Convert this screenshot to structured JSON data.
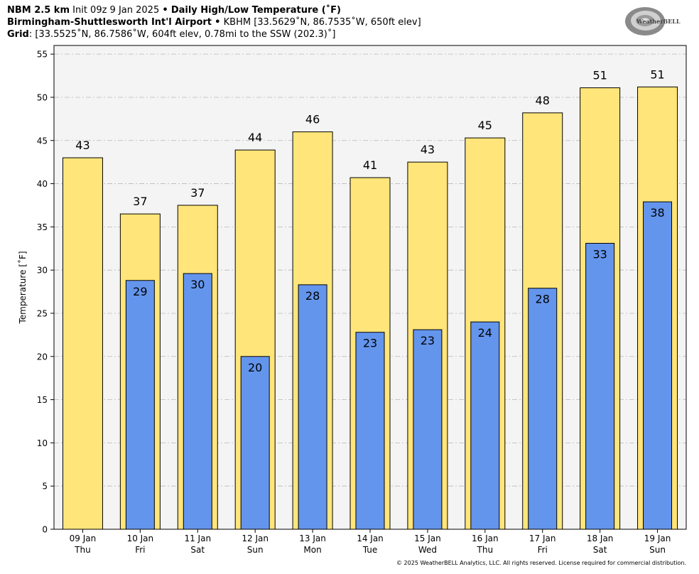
{
  "header": {
    "line1_bold": "NBM 2.5 km",
    "line1_init": "Init 09z 9 Jan 2025",
    "line1_sep": "•",
    "line1_title": "Daily High/Low Temperature (˚F)",
    "line2_bold": "Birmingham-Shuttlesworth Int'l Airport",
    "line2_sep": "•",
    "line2_rest": "KBHM [33.5629˚N, 86.7535˚W, 650ft elev]",
    "line3_bold": "Grid",
    "line3_rest": ": [33.5525˚N, 86.7586˚W, 604ft elev, 0.78mi to the SSW (202.3)˚]"
  },
  "logo": {
    "text": "WeatherBELL",
    "icon": "weatherbell-swirl-logo"
  },
  "footer": "© 2025 WeatherBELL Analytics, LLC. All rights reserved. License required for commercial distribution.",
  "colors": {
    "high": "#FFE57A",
    "low": "#6495ED",
    "plot_bg": "#F4F4F4"
  },
  "chart_data": {
    "type": "bar",
    "ylabel": "Temperature [˚F]",
    "ylim": [
      0,
      56
    ],
    "yticks": [
      0,
      5,
      10,
      15,
      20,
      25,
      30,
      35,
      40,
      45,
      50,
      55
    ],
    "grid": true,
    "categories": [
      "09 Jan",
      "10 Jan",
      "11 Jan",
      "12 Jan",
      "13 Jan",
      "14 Jan",
      "15 Jan",
      "16 Jan",
      "17 Jan",
      "18 Jan",
      "19 Jan"
    ],
    "weekdays": [
      "Thu",
      "Fri",
      "Sat",
      "Sun",
      "Mon",
      "Tue",
      "Wed",
      "Thu",
      "Fri",
      "Sat",
      "Sun"
    ],
    "series": [
      {
        "key": "high",
        "values": [
          43,
          36.5,
          37.5,
          43.9,
          46,
          40.7,
          42.5,
          45.3,
          48.2,
          51.1,
          51.2
        ],
        "labels": [
          "43",
          "37",
          "37",
          "44",
          "46",
          "41",
          "43",
          "45",
          "48",
          "51",
          "51"
        ]
      },
      {
        "key": "low",
        "values": [
          null,
          28.8,
          29.6,
          20,
          28.3,
          22.8,
          23.1,
          24,
          27.9,
          33.1,
          37.9
        ],
        "labels": [
          "",
          "29",
          "30",
          "20",
          "28",
          "23",
          "23",
          "24",
          "28",
          "33",
          "38"
        ]
      }
    ]
  }
}
